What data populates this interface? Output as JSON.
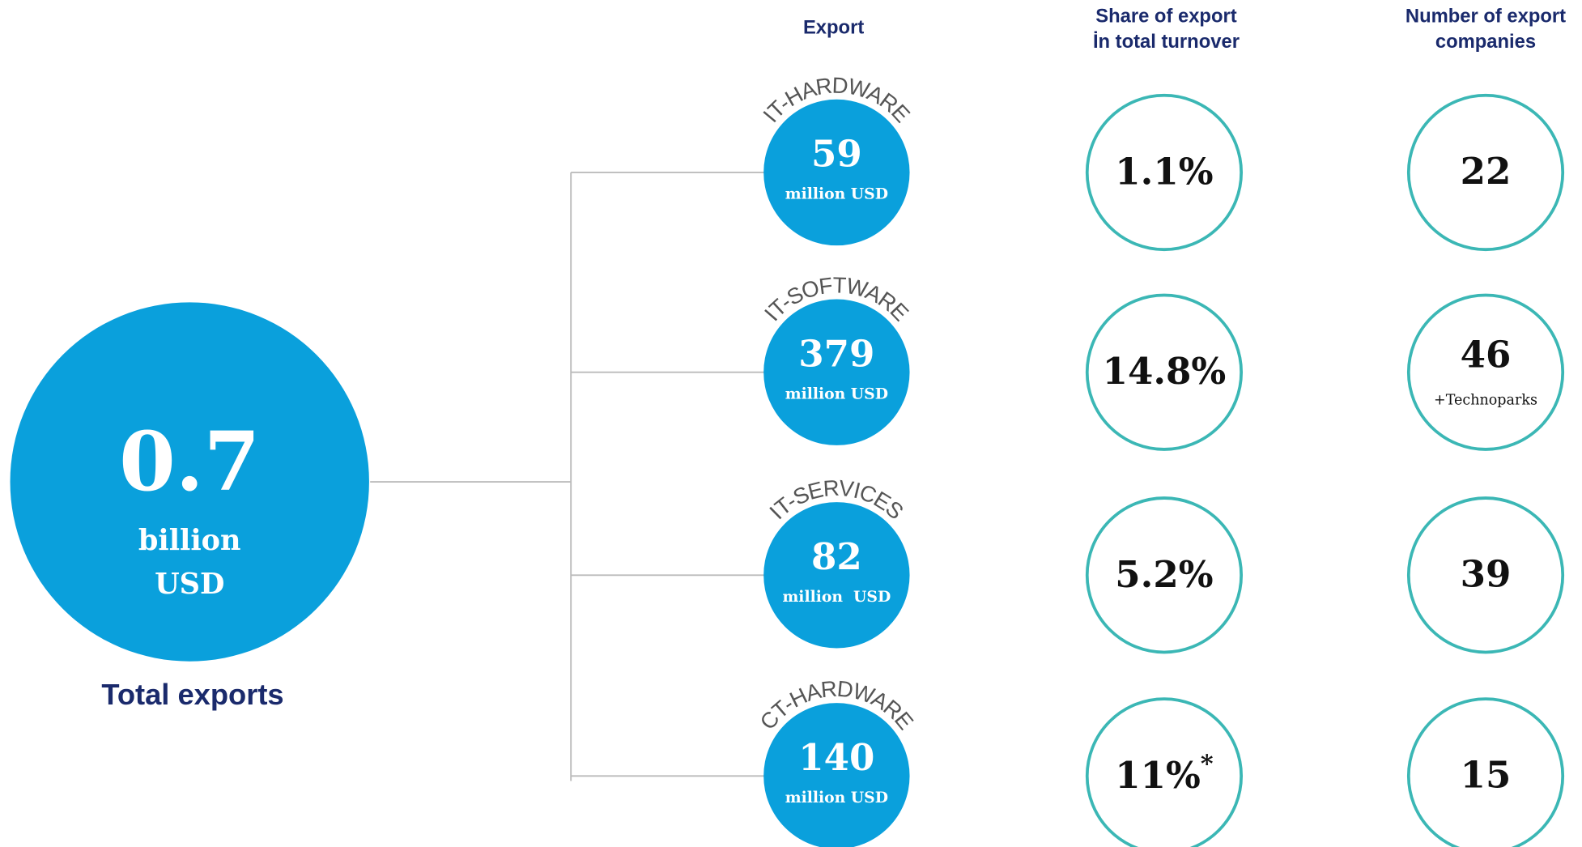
{
  "headers": {
    "export": "Export",
    "share": [
      "Share of export",
      "İn total turnover"
    ],
    "companies": [
      "Number of export",
      "companies"
    ]
  },
  "total": {
    "value": "0.7",
    "unit": [
      "billion",
      "USD"
    ],
    "caption": "Total exports"
  },
  "sectors": [
    {
      "name": "IT-HARDWARE",
      "value": "59",
      "unit": "million USD",
      "share": "1.1%",
      "companies": "22"
    },
    {
      "name": "IT-SOFTWARE",
      "value": "379",
      "unit": "million USD",
      "share": "14.8%",
      "companies": "46",
      "note": "+Technoparks"
    },
    {
      "name": "IT-SERVICES",
      "value": "82",
      "unit": "million  USD",
      "share": "5.2%",
      "companies": "39"
    },
    {
      "name": "CT-HARDWARE",
      "value": "140",
      "unit": "million USD",
      "share": "11%",
      "share_mark": "*",
      "companies": "15"
    }
  ]
}
